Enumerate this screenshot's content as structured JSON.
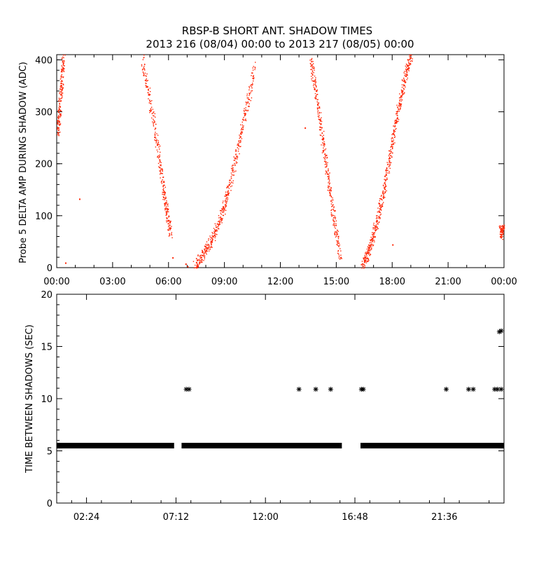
{
  "title": {
    "line1": "RBSP-B SHORT ANT. SHADOW TIMES",
    "line2": "2013 216 (08/04) 00:00 to 2013 217 (08/05) 00:00"
  },
  "colors": {
    "top_points": "#ff2200",
    "bottom_points": "#000000",
    "axes": "#000000"
  },
  "chart_data": [
    {
      "type": "scatter",
      "title": "",
      "xlabel": "",
      "ylabel": "Probe 5 DELTA AMP DURING SHADOW (ADC)",
      "xlim": [
        0,
        24
      ],
      "ylim": [
        0,
        410
      ],
      "xticks": [
        0,
        3,
        6,
        9,
        12,
        15,
        18,
        21,
        24
      ],
      "xtick_labels": [
        "00:00",
        "03:00",
        "06:00",
        "09:00",
        "12:00",
        "15:00",
        "18:00",
        "21:00",
        "00:00"
      ],
      "yticks": [
        0,
        100,
        200,
        300,
        400
      ],
      "ytick_labels": [
        "0",
        "100",
        "200",
        "300",
        "400"
      ],
      "marker": "dot",
      "series": [
        {
          "branches": [
            {
              "x": [
                0.05,
                0.12,
                0.2,
                0.28,
                0.35
              ],
              "y": [
                260,
                290,
                330,
                370,
                410
              ]
            },
            {
              "x": [
                4.6,
                4.9,
                5.2,
                5.45,
                5.65,
                5.8,
                5.95,
                6.1
              ],
              "y": [
                400,
                340,
                280,
                220,
                170,
                130,
                95,
                65
              ]
            },
            {
              "x": [
                7.4,
                7.7,
                8.0,
                8.3,
                8.6,
                8.9,
                9.1,
                9.4,
                9.7,
                10.0,
                10.3,
                10.6
              ],
              "y": [
                5,
                20,
                35,
                55,
                80,
                110,
                140,
                180,
                230,
                280,
                330,
                390
              ]
            },
            {
              "x": [
                13.6,
                13.8,
                14.0,
                14.2,
                14.4,
                14.6,
                14.8,
                15.0,
                15.2
              ],
              "y": [
                400,
                360,
                310,
                260,
                210,
                160,
                110,
                65,
                20
              ]
            },
            {
              "x": [
                16.4,
                16.6,
                16.8,
                17.0,
                17.2,
                17.4,
                17.6,
                17.8,
                18.0,
                18.2,
                18.4,
                18.6,
                18.8,
                19.0
              ],
              "y": [
                5,
                20,
                40,
                65,
                95,
                125,
                160,
                200,
                240,
                285,
                320,
                355,
                385,
                410
              ]
            },
            {
              "x": [
                23.8,
                23.9,
                24.0
              ],
              "y": [
                75,
                65,
                80
              ]
            }
          ],
          "isolated": [
            {
              "x": 6.2,
              "y": 20
            },
            {
              "x": 6.9,
              "y": 8
            },
            {
              "x": 7.0,
              "y": 3
            },
            {
              "x": 1.2,
              "y": 133
            },
            {
              "x": 0.45,
              "y": 10
            },
            {
              "x": 18.0,
              "y": 45
            },
            {
              "x": 13.3,
              "y": 270
            }
          ]
        }
      ]
    },
    {
      "type": "scatter",
      "title": "",
      "xlabel": "",
      "ylabel": "TIME BETWEEN SHADOWS (SEC)",
      "xlim": [
        0,
        24
      ],
      "ylim": [
        0,
        20
      ],
      "xticks": [
        1.6,
        6.4,
        11.2,
        16.0,
        20.8
      ],
      "xtick_labels": [
        "02:24",
        "07:12",
        "12:00",
        "16:48",
        "21:36"
      ],
      "yticks": [
        0,
        5,
        10,
        15,
        20
      ],
      "ytick_labels": [
        "0",
        "5",
        "10",
        "15",
        "20"
      ],
      "marker": "asterisk",
      "series": [
        {
          "baseline_value": 5.5,
          "baseline_ranges": [
            [
              0.0,
              6.3
            ],
            [
              6.7,
              15.3
            ],
            [
              16.3,
              24.0
            ]
          ],
          "points": [
            {
              "x": 6.95,
              "y": 10.9
            },
            {
              "x": 7.1,
              "y": 10.9
            },
            {
              "x": 13.0,
              "y": 10.9
            },
            {
              "x": 13.9,
              "y": 10.9
            },
            {
              "x": 14.7,
              "y": 10.9
            },
            {
              "x": 16.35,
              "y": 10.9
            },
            {
              "x": 16.45,
              "y": 10.9
            },
            {
              "x": 20.9,
              "y": 10.9
            },
            {
              "x": 22.1,
              "y": 10.9
            },
            {
              "x": 22.35,
              "y": 10.9
            },
            {
              "x": 23.5,
              "y": 10.9
            },
            {
              "x": 23.65,
              "y": 10.9
            },
            {
              "x": 23.85,
              "y": 10.9
            },
            {
              "x": 23.75,
              "y": 16.4
            },
            {
              "x": 23.85,
              "y": 16.5
            }
          ]
        }
      ]
    }
  ]
}
